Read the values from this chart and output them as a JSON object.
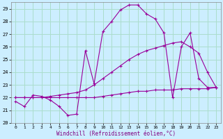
{
  "xlabel": "Windchill (Refroidissement éolien,°C)",
  "bg_color": "#cceeff",
  "grid_color": "#aaddcc",
  "line_color": "#990099",
  "xlim_min": -0.5,
  "xlim_max": 23.5,
  "ylim_min": 20,
  "ylim_max": 29.5,
  "yticks": [
    20,
    21,
    22,
    23,
    24,
    25,
    26,
    27,
    28,
    29
  ],
  "xticks": [
    0,
    1,
    2,
    3,
    4,
    5,
    6,
    7,
    8,
    9,
    10,
    11,
    12,
    13,
    14,
    15,
    16,
    17,
    18,
    19,
    20,
    21,
    22,
    23
  ],
  "s1_x": [
    0,
    1,
    2,
    3,
    4,
    5,
    6,
    7,
    8,
    9,
    10,
    11,
    12,
    13,
    14,
    15,
    16,
    17,
    18,
    19,
    20,
    21,
    22,
    23
  ],
  "s1_y": [
    21.7,
    21.3,
    22.2,
    22.1,
    21.8,
    21.3,
    20.6,
    20.7,
    25.7,
    23.1,
    27.2,
    28.0,
    28.9,
    29.3,
    29.3,
    28.6,
    28.2,
    27.1,
    22.0,
    26.0,
    27.1,
    23.5,
    22.8,
    22.8
  ],
  "s2_x": [
    0,
    1,
    2,
    3,
    4,
    5,
    6,
    7,
    8,
    9,
    10,
    11,
    12,
    13,
    14,
    15,
    16,
    17,
    18,
    19,
    20,
    21,
    22,
    23
  ],
  "s2_y": [
    22.0,
    22.0,
    22.0,
    22.0,
    22.0,
    22.0,
    22.0,
    22.0,
    22.0,
    22.0,
    22.1,
    22.2,
    22.3,
    22.4,
    22.5,
    22.5,
    22.6,
    22.6,
    22.6,
    22.7,
    22.7,
    22.7,
    22.7,
    22.8
  ],
  "s3_x": [
    0,
    1,
    2,
    3,
    4,
    5,
    6,
    7,
    8,
    9,
    10,
    11,
    12,
    13,
    14,
    15,
    16,
    17,
    18,
    19,
    20,
    21,
    22,
    23
  ],
  "s3_y": [
    22.0,
    22.0,
    22.0,
    22.0,
    22.1,
    22.2,
    22.3,
    22.4,
    22.6,
    23.0,
    23.5,
    24.0,
    24.5,
    25.0,
    25.4,
    25.7,
    25.9,
    26.1,
    26.3,
    26.4,
    26.0,
    25.5,
    24.0,
    22.8
  ]
}
